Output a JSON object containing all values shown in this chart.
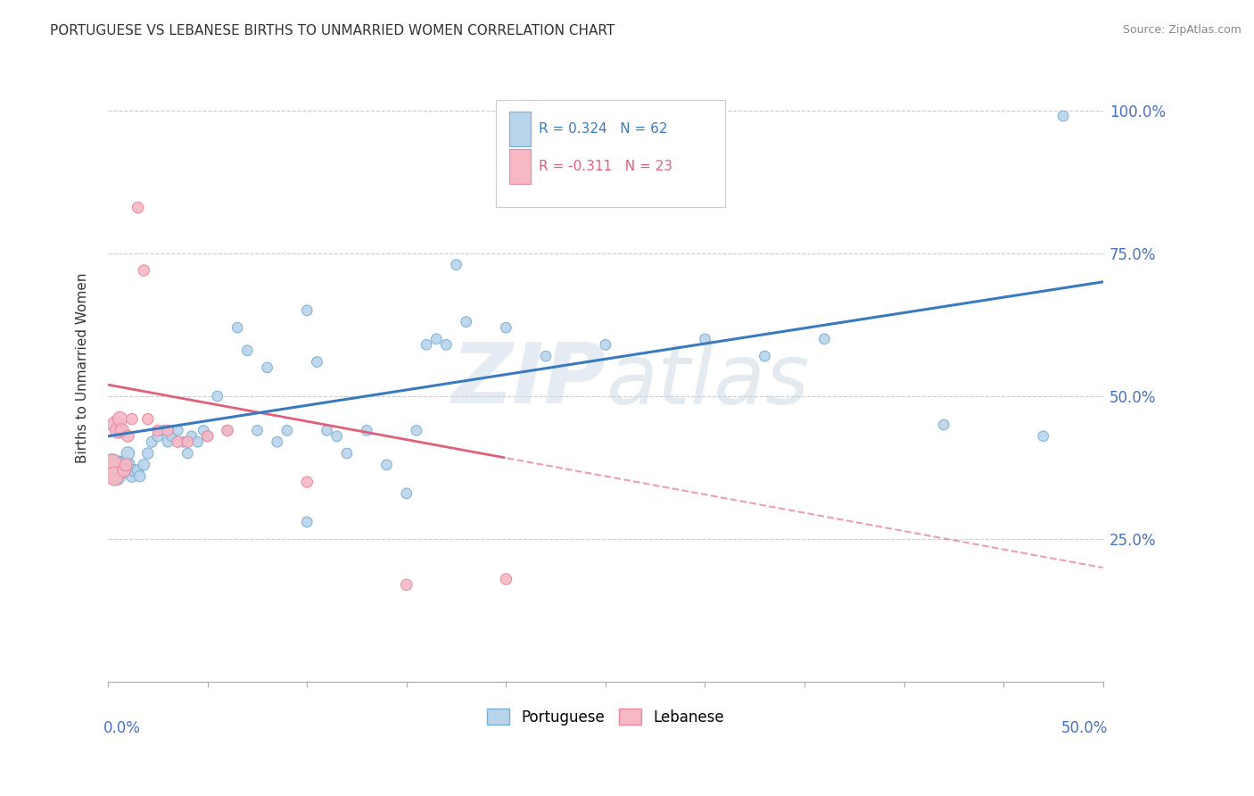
{
  "title": "PORTUGUESE VS LEBANESE BIRTHS TO UNMARRIED WOMEN CORRELATION CHART",
  "source": "Source: ZipAtlas.com",
  "ylabel": "Births to Unmarried Women",
  "xlim": [
    0.0,
    0.5
  ],
  "ylim": [
    0.0,
    1.1
  ],
  "yticks": [
    0.25,
    0.5,
    0.75,
    1.0
  ],
  "ytick_labels": [
    "25.0%",
    "50.0%",
    "75.0%",
    "100.0%"
  ],
  "watermark": "ZIPatlas",
  "blue_scatter_face": "#b8d4eb",
  "blue_scatter_edge": "#7aaed0",
  "pink_scatter_face": "#f5b8c4",
  "pink_scatter_edge": "#e888a0",
  "blue_line": "#3a7abf",
  "pink_line": "#e0607a",
  "port_x": [
    0.001,
    0.002,
    0.003,
    0.004,
    0.005,
    0.006,
    0.007,
    0.008,
    0.009,
    0.01,
    0.01,
    0.011,
    0.012,
    0.013,
    0.015,
    0.016,
    0.018,
    0.02,
    0.022,
    0.025,
    0.028,
    0.03,
    0.032,
    0.035,
    0.038,
    0.04,
    0.042,
    0.045,
    0.048,
    0.05,
    0.055,
    0.06,
    0.065,
    0.07,
    0.075,
    0.08,
    0.085,
    0.09,
    0.1,
    0.1,
    0.105,
    0.11,
    0.115,
    0.12,
    0.13,
    0.14,
    0.15,
    0.155,
    0.16,
    0.165,
    0.17,
    0.175,
    0.18,
    0.2,
    0.22,
    0.25,
    0.3,
    0.33,
    0.36,
    0.42,
    0.47,
    0.48
  ],
  "port_y": [
    0.37,
    0.38,
    0.37,
    0.36,
    0.38,
    0.37,
    0.38,
    0.38,
    0.37,
    0.38,
    0.4,
    0.37,
    0.36,
    0.37,
    0.37,
    0.36,
    0.38,
    0.4,
    0.42,
    0.43,
    0.44,
    0.42,
    0.43,
    0.44,
    0.42,
    0.4,
    0.43,
    0.42,
    0.44,
    0.43,
    0.5,
    0.44,
    0.62,
    0.58,
    0.44,
    0.55,
    0.42,
    0.44,
    0.28,
    0.65,
    0.56,
    0.44,
    0.43,
    0.4,
    0.44,
    0.38,
    0.33,
    0.44,
    0.59,
    0.6,
    0.59,
    0.73,
    0.63,
    0.62,
    0.57,
    0.59,
    0.6,
    0.57,
    0.6,
    0.45,
    0.43,
    0.99
  ],
  "port_sizes": [
    350,
    300,
    250,
    220,
    200,
    180,
    160,
    150,
    130,
    120,
    110,
    100,
    90,
    90,
    85,
    80,
    80,
    80,
    75,
    75,
    70,
    70,
    70,
    70,
    70,
    70,
    70,
    70,
    70,
    70,
    70,
    70,
    70,
    70,
    70,
    70,
    70,
    70,
    70,
    70,
    70,
    70,
    70,
    70,
    70,
    70,
    70,
    70,
    70,
    70,
    70,
    70,
    70,
    70,
    70,
    70,
    70,
    70,
    70,
    70,
    70,
    70
  ],
  "leb_x": [
    0.001,
    0.002,
    0.003,
    0.004,
    0.005,
    0.006,
    0.007,
    0.008,
    0.009,
    0.01,
    0.012,
    0.015,
    0.018,
    0.02,
    0.025,
    0.03,
    0.035,
    0.04,
    0.05,
    0.06,
    0.1,
    0.15,
    0.2
  ],
  "leb_y": [
    0.37,
    0.38,
    0.36,
    0.45,
    0.44,
    0.46,
    0.44,
    0.37,
    0.38,
    0.43,
    0.46,
    0.83,
    0.72,
    0.46,
    0.44,
    0.44,
    0.42,
    0.42,
    0.43,
    0.44,
    0.35,
    0.17,
    0.18
  ],
  "leb_sizes": [
    350,
    280,
    220,
    190,
    160,
    140,
    120,
    110,
    100,
    90,
    80,
    80,
    80,
    80,
    80,
    80,
    80,
    80,
    80,
    80,
    80,
    80,
    80
  ]
}
